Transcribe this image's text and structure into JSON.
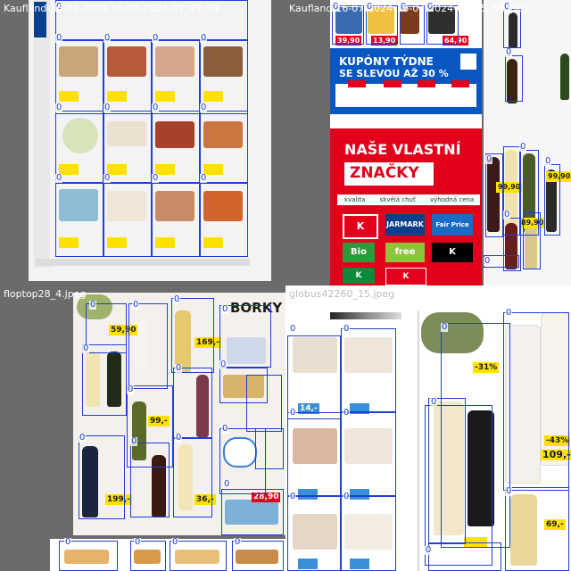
{
  "tiles": [
    {
      "caption": "Kaufland-16-07-2024-16-07-2024-01_45_59"
    },
    {
      "caption": "Kaufland-16-07-2024-16-07-2024-01_45_59.jpeg"
    },
    {
      "caption": "floptop28_4.jpeg"
    },
    {
      "caption": "globus42260_15.jpeg"
    }
  ],
  "box_label": "0",
  "kaufland_promo": {
    "line1": "KUPÓNY TÝDNE",
    "line2": "SE SLEVOU AŽ 30 %",
    "brand1": "NAŠE VLASTNÍ",
    "brand2": "ZNAČKY",
    "features": [
      "kvalita",
      "skvělá chuť",
      "výhodná cena"
    ],
    "logos": [
      "K",
      "JARMARK",
      "Fair Price",
      "Bio",
      "free",
      "K",
      "K",
      "K"
    ],
    "prices": [
      "39,90",
      "13,90",
      "64,90",
      "99,90",
      "89,90",
      "99,90"
    ]
  },
  "floptop": {
    "heading": "BORKY",
    "prices": [
      "59,90",
      "169,-",
      "99,-",
      "28,90",
      "199,-",
      "36,-"
    ]
  },
  "globus": {
    "prices": [
      "-31%",
      "-43%",
      "109,-",
      "69,-",
      "14,-"
    ]
  },
  "colors": {
    "box": "#1f3fd6",
    "kaufland_red": "#e2001a",
    "price_yellow": "#ffe100",
    "blue_banner": "#0b57c2"
  }
}
